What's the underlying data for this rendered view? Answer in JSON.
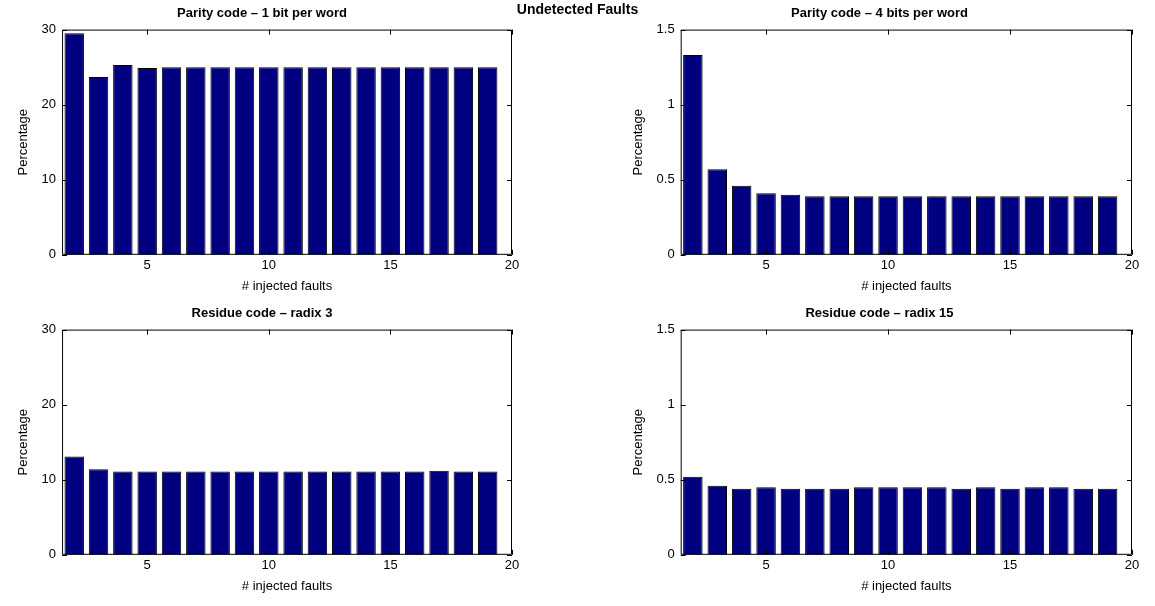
{
  "chart_data": [
    {
      "type": "other",
      "title": "Undetected Faults"
    },
    {
      "type": "bar",
      "title": "Parity code – 1 bit per word",
      "xlabel": "# injected faults",
      "ylabel": "Percentage",
      "x": [
        2,
        3,
        4,
        5,
        6,
        7,
        8,
        9,
        10,
        11,
        12,
        13,
        14,
        15,
        16,
        17,
        18,
        19
      ],
      "values": [
        29.5,
        23.7,
        25.3,
        24.9,
        25.0,
        25.0,
        25.0,
        25.0,
        25.0,
        25.0,
        25.0,
        25.0,
        25.0,
        25.0,
        25.0,
        25.0,
        25.0,
        25.0
      ],
      "color": "#000080",
      "xlim": [
        1.5,
        20
      ],
      "xticks": [
        5,
        10,
        15,
        20
      ],
      "ylim": [
        0,
        30
      ],
      "yticks": [
        0,
        10,
        20,
        30
      ],
      "grid": false,
      "legend": false
    },
    {
      "type": "bar",
      "title": "Parity code – 4 bits per word",
      "xlabel": "# injected faults",
      "ylabel": "Percentage",
      "x": [
        2,
        3,
        4,
        5,
        6,
        7,
        8,
        9,
        10,
        11,
        12,
        13,
        14,
        15,
        16,
        17,
        18,
        19
      ],
      "values": [
        1.33,
        0.57,
        0.46,
        0.41,
        0.4,
        0.39,
        0.39,
        0.39,
        0.39,
        0.39,
        0.39,
        0.39,
        0.39,
        0.39,
        0.39,
        0.39,
        0.39,
        0.39
      ],
      "color": "#000080",
      "xlim": [
        1.5,
        20
      ],
      "xticks": [
        5,
        10,
        15,
        20
      ],
      "ylim": [
        0,
        1.5
      ],
      "yticks": [
        0,
        0.5,
        1,
        1.5
      ],
      "grid": false,
      "legend": false
    },
    {
      "type": "bar",
      "title": "Residue code – radix 3",
      "xlabel": "# injected faults",
      "ylabel": "Percentage",
      "x": [
        2,
        3,
        4,
        5,
        6,
        7,
        8,
        9,
        10,
        11,
        12,
        13,
        14,
        15,
        16,
        17,
        18,
        19
      ],
      "values": [
        13.1,
        11.4,
        11.1,
        11.1,
        11.1,
        11.1,
        11.1,
        11.1,
        11.1,
        11.1,
        11.1,
        11.1,
        11.1,
        11.1,
        11.1,
        11.2,
        11.1,
        11.1
      ],
      "color": "#000080",
      "xlim": [
        1.5,
        20
      ],
      "xticks": [
        5,
        10,
        15,
        20
      ],
      "ylim": [
        0,
        30
      ],
      "yticks": [
        0,
        10,
        20,
        30
      ],
      "grid": false,
      "legend": false
    },
    {
      "type": "bar",
      "title": "Residue code – radix 15",
      "xlabel": "# injected faults",
      "ylabel": "Percentage",
      "x": [
        2,
        3,
        4,
        5,
        6,
        7,
        8,
        9,
        10,
        11,
        12,
        13,
        14,
        15,
        16,
        17,
        18,
        19
      ],
      "values": [
        0.52,
        0.46,
        0.44,
        0.45,
        0.44,
        0.44,
        0.44,
        0.45,
        0.45,
        0.45,
        0.45,
        0.44,
        0.45,
        0.44,
        0.45,
        0.45,
        0.44,
        0.44
      ],
      "color": "#000080",
      "xlim": [
        1.5,
        20
      ],
      "xticks": [
        5,
        10,
        15,
        20
      ],
      "ylim": [
        0,
        1.5
      ],
      "yticks": [
        0,
        0.5,
        1,
        1.5
      ],
      "grid": false,
      "legend": false
    }
  ]
}
